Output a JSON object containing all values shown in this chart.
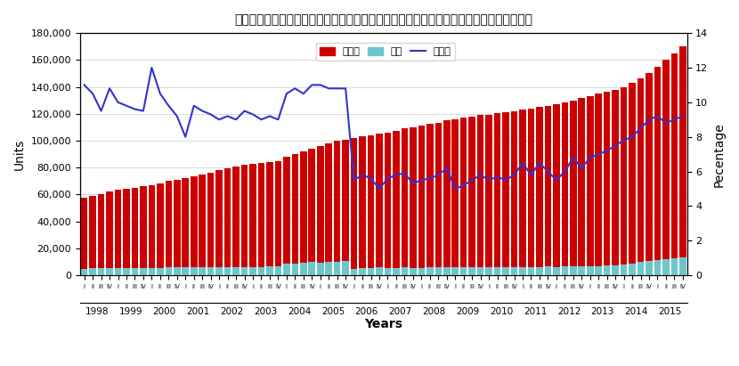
{
  "title": "コンドミニアム総戸数推移（アパート並びに戸建て、セミディタッチ、テラスは含まず）",
  "xlabel": "Years",
  "ylabel_left": "Units",
  "ylabel_right": "Pecentage",
  "legend_labels": [
    "総戸数",
    "空室",
    "空室率"
  ],
  "bar_color_total": "#cc0000",
  "bar_color_vacant": "#6ec6cc",
  "line_color": "#3333cc",
  "ylim_left": [
    0,
    180000
  ],
  "ylim_right": [
    0,
    14
  ],
  "yticks_left": [
    0,
    20000,
    40000,
    60000,
    80000,
    100000,
    120000,
    140000,
    160000,
    180000
  ],
  "yticks_right": [
    0,
    2,
    4,
    6,
    8,
    10,
    12,
    14
  ],
  "years": [
    1998,
    1999,
    2000,
    2001,
    2002,
    2003,
    2004,
    2005,
    2006,
    2007,
    2008,
    2009,
    2010,
    2011,
    2012,
    2013,
    2014,
    2015
  ],
  "quarters": [
    "I",
    "II",
    "III",
    "IV"
  ],
  "total_units": [
    57500,
    59000,
    60500,
    62000,
    63500,
    64000,
    65000,
    66000,
    67000,
    68500,
    70000,
    71000,
    72500,
    73500,
    75000,
    76000,
    78000,
    79500,
    81000,
    82000,
    83000,
    83500,
    84000,
    85000,
    88000,
    90000,
    92000,
    94000,
    96000,
    98000,
    100000,
    101000,
    102000,
    103000,
    104000,
    105000,
    106000,
    107500,
    109000,
    110000,
    111000,
    112500,
    113500,
    115000,
    116000,
    117000,
    118000,
    119000,
    119500,
    120500,
    121000,
    122000,
    123000,
    124000,
    125000,
    126000,
    127000,
    128500,
    130000,
    131500,
    133000,
    135000,
    136500,
    138000,
    140000,
    143000,
    146000,
    150000,
    155000,
    160000,
    165000,
    170000
  ],
  "vacant_units": [
    5000,
    5200,
    5300,
    5500,
    5400,
    5500,
    5600,
    5700,
    5600,
    5700,
    5800,
    6000,
    5800,
    5900,
    6000,
    6100,
    6000,
    6100,
    6200,
    6300,
    6200,
    6300,
    6500,
    6600,
    8500,
    9000,
    9500,
    10000,
    9500,
    10000,
    10000,
    10500,
    5000,
    5200,
    5500,
    5800,
    5500,
    5700,
    5800,
    5500,
    5700,
    5800,
    5900,
    6000,
    5800,
    5900,
    6000,
    6200,
    5800,
    6000,
    6100,
    6200,
    6000,
    6200,
    6300,
    6500,
    6200,
    6500,
    6600,
    6800,
    6500,
    7000,
    7200,
    7500,
    8000,
    9000,
    10000,
    11000,
    11500,
    12000,
    12500,
    13000
  ],
  "vacancy_rate": [
    11.0,
    10.5,
    9.5,
    10.8,
    10.0,
    9.8,
    9.6,
    9.5,
    12.0,
    10.5,
    9.8,
    9.2,
    8.0,
    9.8,
    9.5,
    9.3,
    9.0,
    9.2,
    9.0,
    9.5,
    9.3,
    9.0,
    9.2,
    9.0,
    10.5,
    10.8,
    10.5,
    11.0,
    11.0,
    10.8,
    10.8,
    10.8,
    5.5,
    5.8,
    5.6,
    5.0,
    5.6,
    5.8,
    5.9,
    5.3,
    5.5,
    5.6,
    5.8,
    6.2,
    5.0,
    5.2,
    5.5,
    5.8,
    5.5,
    5.7,
    5.5,
    5.8,
    6.5,
    5.8,
    6.5,
    6.0,
    5.5,
    6.0,
    6.8,
    6.2,
    6.8,
    7.0,
    7.2,
    7.5,
    7.8,
    8.0,
    8.5,
    9.0,
    9.2,
    8.8,
    9.0,
    9.2
  ],
  "background_color": "#ffffff",
  "plot_bg_color": "#ffffff"
}
